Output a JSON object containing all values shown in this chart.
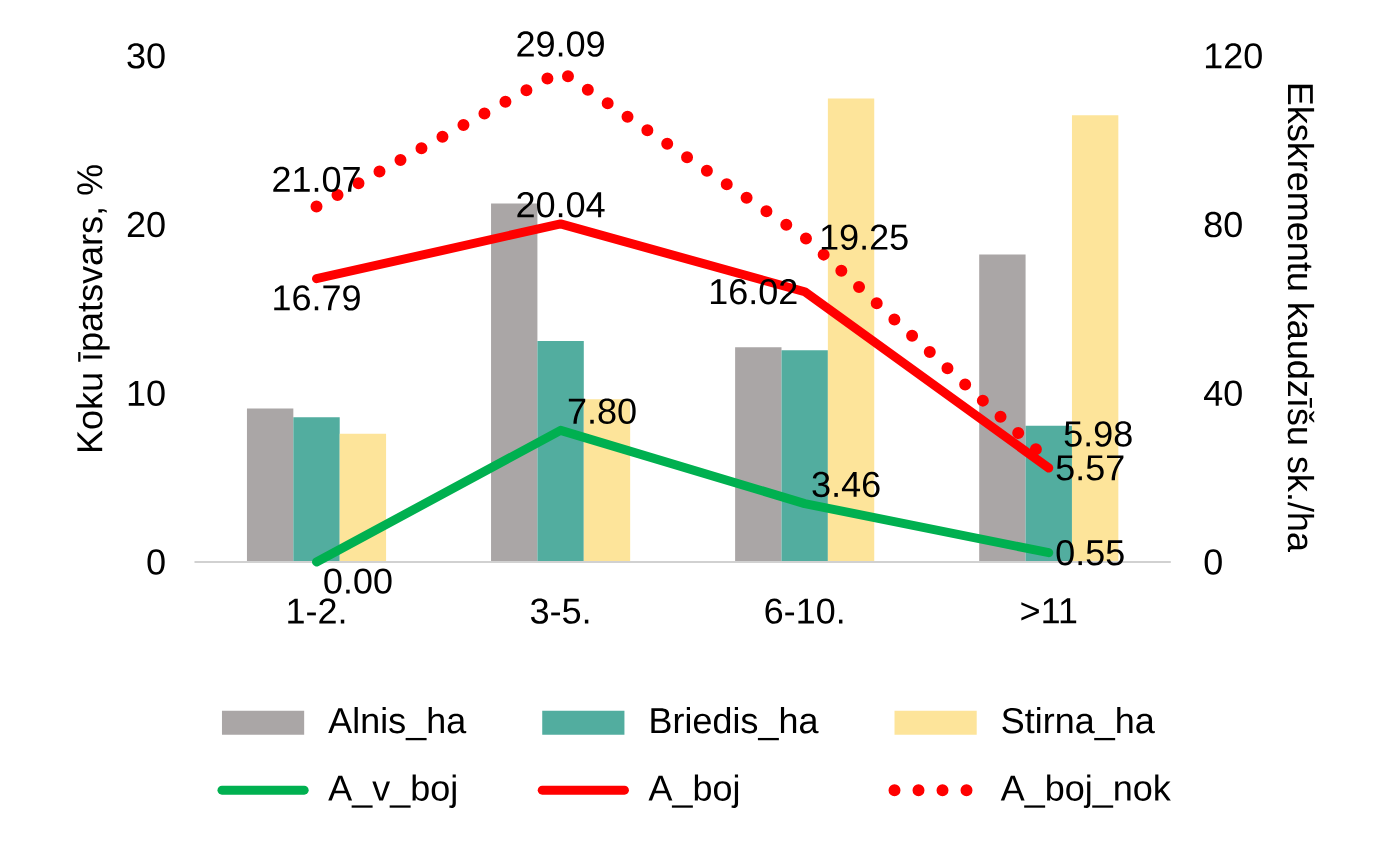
{
  "chart_data": {
    "type": "bar",
    "categories": [
      "1-2.",
      "3-5.",
      "6-10.",
      ">11"
    ],
    "ylabel": "Koku īpatsvars, %",
    "y2label": "Ekskrementu kaudzīšu sk./ha",
    "ylim": [
      0,
      30
    ],
    "yticks": [
      0,
      10,
      20,
      30
    ],
    "y2lim": [
      0,
      120
    ],
    "y2ticks": [
      0,
      40,
      80,
      120
    ],
    "legend": "bottom",
    "series": [
      {
        "name": "Alnis_ha",
        "color": "#aaa6a6",
        "axis": "y2",
        "values": [
          36.4,
          85,
          50.9,
          72.9
        ]
      },
      {
        "name": "Briedis_ha",
        "color": "#52ad9f",
        "axis": "y2",
        "values": [
          34.3,
          52.4,
          50.2,
          32.3
        ]
      },
      {
        "name": "Stirna_ha",
        "color": "#fde49a",
        "axis": "y2",
        "values": [
          30.4,
          38.6,
          109.9,
          105.9
        ]
      },
      {
        "name": "A_v_boj",
        "type": "line",
        "color": "#00b050",
        "values": [
          0,
          7.8,
          3.46,
          0.55
        ],
        "value_labels": [
          "0.00",
          "7.80",
          "3.46",
          "0.55"
        ]
      },
      {
        "name": "A_boj",
        "type": "line",
        "color": "#ff0000",
        "values": [
          16.79,
          20.04,
          16.02,
          5.57
        ],
        "value_labels": [
          "16.79",
          "20.04",
          "16.02",
          "5.57"
        ]
      },
      {
        "name": "A_boj_nok",
        "type": "line",
        "color": "#ff0000",
        "line_style": "dotted",
        "values": [
          21.07,
          29.09,
          19.25,
          5.98
        ],
        "value_labels": [
          "21.07",
          "29.09",
          "19.25",
          "5.98"
        ]
      }
    ]
  }
}
